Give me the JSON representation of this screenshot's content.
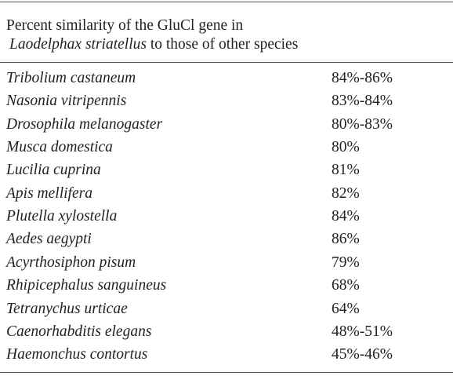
{
  "caption": {
    "line1": "Percent similarity of the GluCl gene in",
    "species": "Laodelphax striatellus",
    "line2_rest": "to those of other species"
  },
  "table": {
    "rows": [
      [
        "Tribolium castaneum",
        "84%-86%"
      ],
      [
        "Nasonia vitripennis",
        "83%-84%"
      ],
      [
        "Drosophila melanogaster",
        "80%-83%"
      ],
      [
        "Musca domestica",
        "80%"
      ],
      [
        "Lucilia cuprina",
        "81%"
      ],
      [
        "Apis mellifera",
        "82%"
      ],
      [
        "Plutella xylostella",
        "84%"
      ],
      [
        "Aedes aegypti",
        "86%"
      ],
      [
        "Acyrthosiphon pisum",
        "79%"
      ],
      [
        "Rhipicephalus sanguineus",
        "68%"
      ],
      [
        "Tetranychus urticae",
        "64%"
      ],
      [
        "Caenorhabditis elegans",
        "48%-51%"
      ],
      [
        "Haemonchus contortus",
        "45%-46%"
      ]
    ]
  }
}
